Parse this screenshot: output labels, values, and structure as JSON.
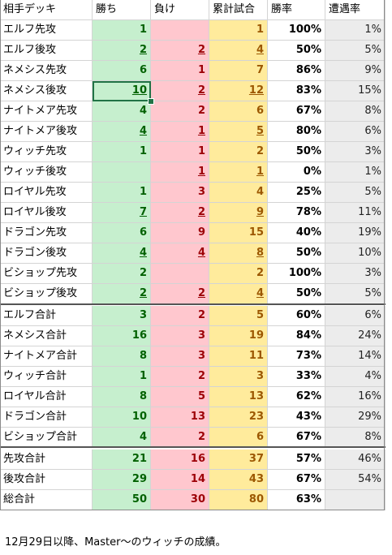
{
  "sheet": {
    "headers": [
      "相手デッキ",
      "勝ち",
      "負け",
      "累計試合",
      "勝率",
      "遭遇率"
    ],
    "rows": [
      {
        "name": "エルフ先攻",
        "win": "1",
        "loss": "",
        "total": "1",
        "rate": "100%",
        "enc": "1%"
      },
      {
        "name": "エルフ後攻",
        "win": "2",
        "loss": "2",
        "total": "4",
        "rate": "50%",
        "enc": "5%"
      },
      {
        "name": "ネメシス先攻",
        "win": "6",
        "loss": "1",
        "total": "7",
        "rate": "86%",
        "enc": "9%"
      },
      {
        "name": "ネメシス後攻",
        "win": "10",
        "loss": "2",
        "total": "12",
        "rate": "83%",
        "enc": "15%"
      },
      {
        "name": "ナイトメア先攻",
        "win": "4",
        "loss": "2",
        "total": "6",
        "rate": "67%",
        "enc": "8%"
      },
      {
        "name": "ナイトメア後攻",
        "win": "4",
        "loss": "1",
        "total": "5",
        "rate": "80%",
        "enc": "6%"
      },
      {
        "name": "ウィッチ先攻",
        "win": "1",
        "loss": "1",
        "total": "2",
        "rate": "50%",
        "enc": "3%"
      },
      {
        "name": "ウィッチ後攻",
        "win": "",
        "loss": "1",
        "total": "1",
        "rate": "0%",
        "enc": "1%"
      },
      {
        "name": "ロイヤル先攻",
        "win": "1",
        "loss": "3",
        "total": "4",
        "rate": "25%",
        "enc": "5%"
      },
      {
        "name": "ロイヤル後攻",
        "win": "7",
        "loss": "2",
        "total": "9",
        "rate": "78%",
        "enc": "11%"
      },
      {
        "name": "ドラゴン先攻",
        "win": "6",
        "loss": "9",
        "total": "15",
        "rate": "40%",
        "enc": "19%"
      },
      {
        "name": "ドラゴン後攻",
        "win": "4",
        "loss": "4",
        "total": "8",
        "rate": "50%",
        "enc": "10%"
      },
      {
        "name": "ビショップ先攻",
        "win": "2",
        "loss": "",
        "total": "2",
        "rate": "100%",
        "enc": "3%"
      },
      {
        "name": "ビショップ後攻",
        "win": "2",
        "loss": "2",
        "total": "4",
        "rate": "50%",
        "enc": "5%"
      },
      {
        "name": "エルフ合計",
        "win": "3",
        "loss": "2",
        "total": "5",
        "rate": "60%",
        "enc": "6%"
      },
      {
        "name": "ネメシス合計",
        "win": "16",
        "loss": "3",
        "total": "19",
        "rate": "84%",
        "enc": "24%"
      },
      {
        "name": "ナイトメア合計",
        "win": "8",
        "loss": "3",
        "total": "11",
        "rate": "73%",
        "enc": "14%"
      },
      {
        "name": "ウィッチ合計",
        "win": "1",
        "loss": "2",
        "total": "3",
        "rate": "33%",
        "enc": "4%"
      },
      {
        "name": "ロイヤル合計",
        "win": "8",
        "loss": "5",
        "total": "13",
        "rate": "62%",
        "enc": "16%"
      },
      {
        "name": "ドラゴン合計",
        "win": "10",
        "loss": "13",
        "total": "23",
        "rate": "43%",
        "enc": "29%"
      },
      {
        "name": "ビショップ合計",
        "win": "4",
        "loss": "2",
        "total": "6",
        "rate": "67%",
        "enc": "8%"
      },
      {
        "name": "先攻合計",
        "win": "21",
        "loss": "16",
        "total": "37",
        "rate": "57%",
        "enc": "46%"
      },
      {
        "name": "後攻合計",
        "win": "29",
        "loss": "14",
        "total": "43",
        "rate": "67%",
        "enc": "54%"
      },
      {
        "name": "総合計",
        "win": "50",
        "loss": "30",
        "total": "80",
        "rate": "63%",
        "enc": ""
      }
    ]
  },
  "note": "12月29日以降、Master～のウィッチの成績。",
  "colors": {
    "win_fill": "#c6efce",
    "win_text": "#006100",
    "loss_fill": "#ffc7ce",
    "loss_text": "#9c0006",
    "total_fill": "#ffeb9c",
    "total_text": "#9c5700",
    "enc_fill": "#ececec",
    "selection": "#217346"
  }
}
